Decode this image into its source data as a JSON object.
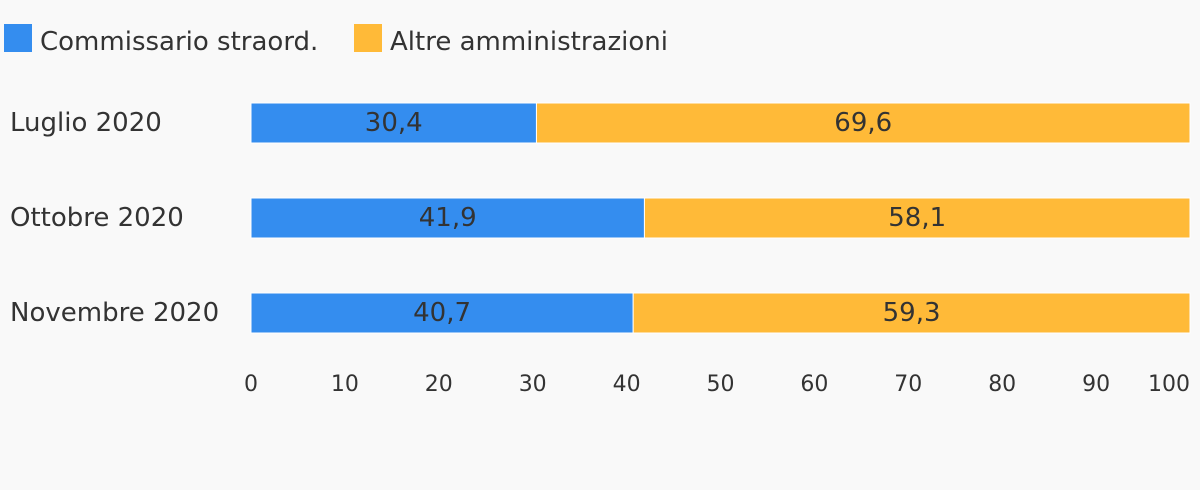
{
  "chart_data": {
    "type": "bar",
    "orientation": "horizontal",
    "stacked": true,
    "categories": [
      "Luglio 2020",
      "Ottobre 2020",
      "Novembre 2020"
    ],
    "series": [
      {
        "name": "Commissario straord.",
        "color": "#348def",
        "values": [
          30.4,
          41.9,
          40.7
        ],
        "labels": [
          "30,4",
          "41,9",
          "40,7"
        ]
      },
      {
        "name": "Altre amministrazioni",
        "color": "#ffba38",
        "values": [
          69.6,
          58.1,
          59.3
        ],
        "labels": [
          "69,6",
          "58,1",
          "59,3"
        ]
      }
    ],
    "xlim": [
      0,
      100
    ],
    "xticks": [
      "0",
      "10",
      "20",
      "30",
      "40",
      "50",
      "60",
      "70",
      "80",
      "90",
      "100"
    ],
    "grid": false,
    "legend_position": "top-left"
  },
  "colors": {
    "background": "#f9f9f9",
    "text": "#333333",
    "bar_separator": "#ffffff"
  }
}
